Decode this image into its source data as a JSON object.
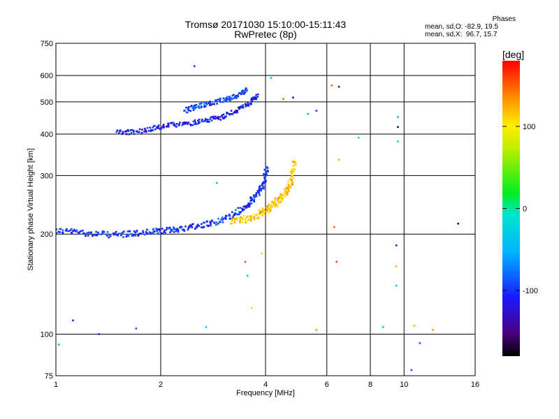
{
  "chart_data": {
    "type": "scatter",
    "title": "Tromsø 20171030 15:10:00-15:11:43",
    "subtitle": "RwPretec (8p)",
    "xlabel": "Frequency [MHz]",
    "ylabel": "Stationary phase Virtual Height [km]",
    "x_scale": "log",
    "y_scale": "log",
    "xlim": [
      1,
      16
    ],
    "ylim": [
      75,
      750
    ],
    "x_ticks": [
      1,
      2,
      4,
      6,
      8,
      10,
      16
    ],
    "y_ticks": [
      75,
      100,
      200,
      300,
      400,
      500,
      600,
      750
    ],
    "x_gridlines": [
      2,
      4,
      6,
      8,
      10
    ],
    "y_gridlines": [
      100,
      200,
      300,
      400,
      500,
      600
    ],
    "grid": true,
    "colorbar": {
      "label": "[deg]",
      "ticks": [
        100,
        0,
        -100
      ],
      "range": [
        -180,
        180
      ]
    },
    "phase_info": {
      "heading": "Phases",
      "o_line": "mean, sd,O: -82.9, 19.5",
      "x_line": "mean, sd,X:  96.7, 15.7"
    },
    "traces": [
      {
        "name": "",
        "x": [
          1.0,
          1.15,
          1.3,
          1.5,
          1.7,
          1.9,
          2.1,
          2.3,
          2.6,
          2.9,
          3.2,
          3.5,
          3.7,
          3.85,
          3.95,
          4.05
        ],
        "y": [
          205,
          203,
          200,
          199,
          201,
          203,
          205,
          208,
          212,
          218,
          227,
          240,
          255,
          270,
          285,
          320
        ],
        "phase": -100,
        "spread": 4
      },
      {
        "name": "",
        "x": [
          3.2,
          3.5,
          3.8,
          4.0,
          4.2,
          4.4,
          4.6,
          4.75,
          4.85
        ],
        "y": [
          220,
          222,
          228,
          235,
          243,
          255,
          270,
          290,
          330
        ],
        "phase": 115,
        "spread": 5
      },
      {
        "name": "",
        "x": [
          1.5,
          1.65,
          1.9,
          2.1,
          2.4,
          2.7,
          3.0,
          3.3,
          3.6,
          3.8
        ],
        "y": [
          405,
          405,
          415,
          425,
          430,
          440,
          450,
          470,
          495,
          525
        ],
        "phase": -110,
        "spread": 3
      },
      {
        "name": "",
        "x": [
          2.35,
          2.55,
          2.8,
          3.1,
          3.35,
          3.55
        ],
        "y": [
          470,
          485,
          495,
          510,
          525,
          545
        ],
        "phase": -95,
        "spread": 3
      }
    ],
    "scattered": [
      {
        "x": 1.12,
        "y": 110,
        "phase": -120
      },
      {
        "x": 1.33,
        "y": 100,
        "phase": -100
      },
      {
        "x": 1.7,
        "y": 104,
        "phase": -85
      },
      {
        "x": 2.5,
        "y": 640,
        "phase": -100
      },
      {
        "x": 2.7,
        "y": 105,
        "phase": -40
      },
      {
        "x": 2.9,
        "y": 285,
        "phase": -40
      },
      {
        "x": 3.5,
        "y": 165,
        "phase": 160
      },
      {
        "x": 3.55,
        "y": 150,
        "phase": -30
      },
      {
        "x": 3.65,
        "y": 120,
        "phase": 110
      },
      {
        "x": 3.9,
        "y": 175,
        "phase": 110
      },
      {
        "x": 4.15,
        "y": 590,
        "phase": -50
      },
      {
        "x": 4.5,
        "y": 510,
        "phase": 150
      },
      {
        "x": 4.8,
        "y": 515,
        "phase": -120
      },
      {
        "x": 5.3,
        "y": 460,
        "phase": -50
      },
      {
        "x": 5.6,
        "y": 103,
        "phase": 130
      },
      {
        "x": 5.6,
        "y": 470,
        "phase": -100
      },
      {
        "x": 6.2,
        "y": 560,
        "phase": 150
      },
      {
        "x": 6.3,
        "y": 210,
        "phase": 150
      },
      {
        "x": 6.4,
        "y": 165,
        "phase": 160
      },
      {
        "x": 6.5,
        "y": 335,
        "phase": 120
      },
      {
        "x": 6.5,
        "y": 555,
        "phase": -130
      },
      {
        "x": 7.4,
        "y": 390,
        "phase": -30
      },
      {
        "x": 8.7,
        "y": 105,
        "phase": -40
      },
      {
        "x": 9.5,
        "y": 185,
        "phase": -120
      },
      {
        "x": 9.5,
        "y": 160,
        "phase": 120
      },
      {
        "x": 9.5,
        "y": 140,
        "phase": -50
      },
      {
        "x": 9.6,
        "y": 420,
        "phase": -170
      },
      {
        "x": 9.6,
        "y": 380,
        "phase": -30
      },
      {
        "x": 9.6,
        "y": 450,
        "phase": -50
      },
      {
        "x": 10.7,
        "y": 106,
        "phase": 120
      },
      {
        "x": 11.1,
        "y": 94,
        "phase": -85
      },
      {
        "x": 10.5,
        "y": 78,
        "phase": -85
      },
      {
        "x": 12.1,
        "y": 103,
        "phase": 130
      },
      {
        "x": 14.3,
        "y": 215,
        "phase": -160
      },
      {
        "x": 1.02,
        "y": 93,
        "phase": -50
      }
    ]
  }
}
